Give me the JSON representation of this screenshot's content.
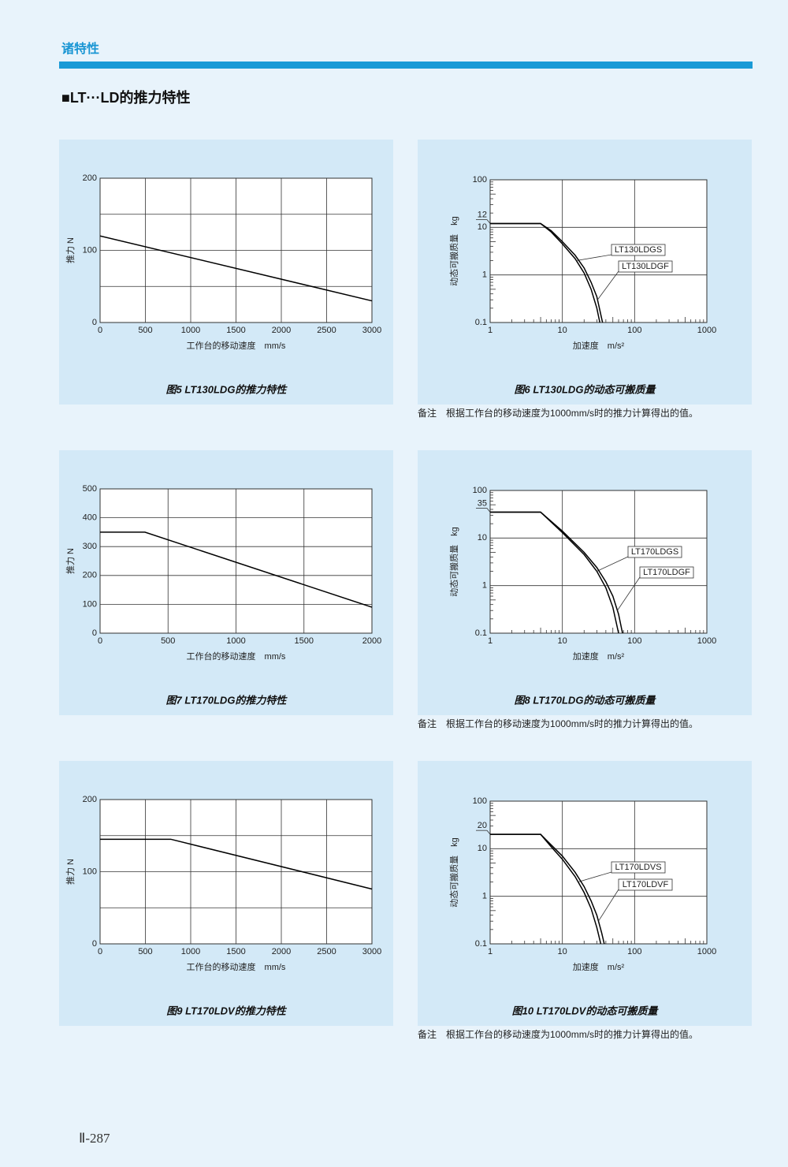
{
  "header": "诸特性",
  "section_title": "■LT···LD的推力特性",
  "page_number": "Ⅱ-287",
  "chart_data": [
    {
      "type": "line",
      "title": "图5 LT130LDG的推力特性",
      "x_label": "工作台的移动速度　mm/s",
      "y_label": "推力 N",
      "xlim": [
        0,
        3000
      ],
      "xticks": [
        0,
        500,
        1000,
        1500,
        2000,
        2500,
        3000
      ],
      "ylim": [
        0,
        200
      ],
      "yticks": [
        0,
        100,
        200
      ],
      "minor_yticks": [
        50,
        150
      ],
      "grid": true,
      "series": [
        {
          "color": "#000000",
          "x": [
            0,
            3000
          ],
          "values": [
            120,
            30
          ]
        }
      ]
    },
    {
      "type": "line",
      "log_scale": true,
      "title": "图6 LT130LDG的动态可搬质量",
      "x_label": "加速度　m/s²",
      "y_label": "动态可搬质量　kg",
      "xlim": [
        1,
        1000
      ],
      "xticks": [
        1,
        10,
        100,
        1000
      ],
      "ylim": [
        0.1,
        100
      ],
      "yticks": [
        0.1,
        1,
        10,
        12,
        100
      ],
      "grid": true,
      "note": "备注　根据工作台的移动速度为1000mm/s时的推力计算得出的值。",
      "series": [
        {
          "name": "LT130LDGS",
          "color": "#000000",
          "x": [
            1,
            5,
            7,
            10,
            15,
            20,
            25,
            30,
            33
          ],
          "values": [
            12,
            12,
            8,
            4.5,
            2.2,
            1.1,
            0.5,
            0.2,
            0.1
          ]
        },
        {
          "name": "LT130LDGF",
          "color": "#000000",
          "x": [
            1,
            5,
            7,
            10,
            15,
            20,
            25,
            30,
            36
          ],
          "values": [
            12,
            12,
            8.5,
            5,
            2.6,
            1.4,
            0.7,
            0.35,
            0.1
          ]
        }
      ]
    },
    {
      "type": "line",
      "title": "图7 LT170LDG的推力特性",
      "x_label": "工作台的移动速度　mm/s",
      "y_label": "推力 N",
      "xlim": [
        0,
        2000
      ],
      "xticks": [
        0,
        500,
        1000,
        1500,
        2000
      ],
      "ylim": [
        0,
        500
      ],
      "yticks": [
        0,
        100,
        200,
        300,
        400,
        500
      ],
      "grid": true,
      "series": [
        {
          "color": "#000000",
          "x": [
            0,
            330,
            2000
          ],
          "values": [
            350,
            350,
            90
          ]
        }
      ]
    },
    {
      "type": "line",
      "log_scale": true,
      "title": "图8 LT170LDG的动态可搬质量",
      "x_label": "加速度　m/s²",
      "y_label": "动态可搬质量　kg",
      "xlim": [
        1,
        1000
      ],
      "xticks": [
        1,
        10,
        100,
        1000
      ],
      "ylim": [
        0.1,
        100
      ],
      "yticks": [
        0.1,
        1,
        10,
        35,
        100
      ],
      "grid": true,
      "note": "备注　根据工作台的移动速度为1000mm/s时的推力计算得出的值。",
      "series": [
        {
          "name": "LT170LDGS",
          "color": "#000000",
          "x": [
            1,
            5,
            10,
            20,
            30,
            40,
            50,
            60
          ],
          "values": [
            35,
            35,
            13,
            4.5,
            2,
            0.9,
            0.35,
            0.1
          ]
        },
        {
          "name": "LT170LDGF",
          "color": "#000000",
          "x": [
            1,
            5,
            10,
            20,
            30,
            40,
            50,
            60,
            68
          ],
          "values": [
            35,
            35,
            14,
            5,
            2.4,
            1.2,
            0.6,
            0.25,
            0.1
          ]
        }
      ]
    },
    {
      "type": "line",
      "title": "图9 LT170LDV的推力特性",
      "x_label": "工作台的移动速度　mm/s",
      "y_label": "推力 N",
      "xlim": [
        0,
        3000
      ],
      "xticks": [
        0,
        500,
        1000,
        1500,
        2000,
        2500,
        3000
      ],
      "ylim": [
        0,
        200
      ],
      "yticks": [
        0,
        100,
        200
      ],
      "minor_yticks": [
        50,
        150
      ],
      "grid": true,
      "series": [
        {
          "color": "#000000",
          "x": [
            0,
            780,
            3000
          ],
          "values": [
            145,
            145,
            76
          ]
        }
      ]
    },
    {
      "type": "line",
      "log_scale": true,
      "title": "图10 LT170LDV的动态可搬质量",
      "x_label": "加速度　m/s²",
      "y_label": "动态可搬质量　kg",
      "xlim": [
        1,
        1000
      ],
      "xticks": [
        1,
        10,
        100,
        1000
      ],
      "ylim": [
        0.1,
        100
      ],
      "yticks": [
        0.1,
        1,
        10,
        20,
        100
      ],
      "grid": true,
      "note": "备注　根据工作台的移动速度为1000mm/s时的推力计算得出的值。",
      "series": [
        {
          "name": "LT170LDVS",
          "color": "#000000",
          "x": [
            1,
            5,
            7,
            10,
            15,
            20,
            25,
            30,
            34
          ],
          "values": [
            20,
            20,
            11,
            6,
            2.6,
            1.2,
            0.55,
            0.22,
            0.1
          ]
        },
        {
          "name": "LT170LDVF",
          "color": "#000000",
          "x": [
            1,
            5,
            7,
            10,
            15,
            20,
            25,
            30,
            35,
            38
          ],
          "values": [
            20,
            20,
            12,
            7,
            3.2,
            1.6,
            0.8,
            0.4,
            0.17,
            0.1
          ]
        }
      ]
    }
  ]
}
